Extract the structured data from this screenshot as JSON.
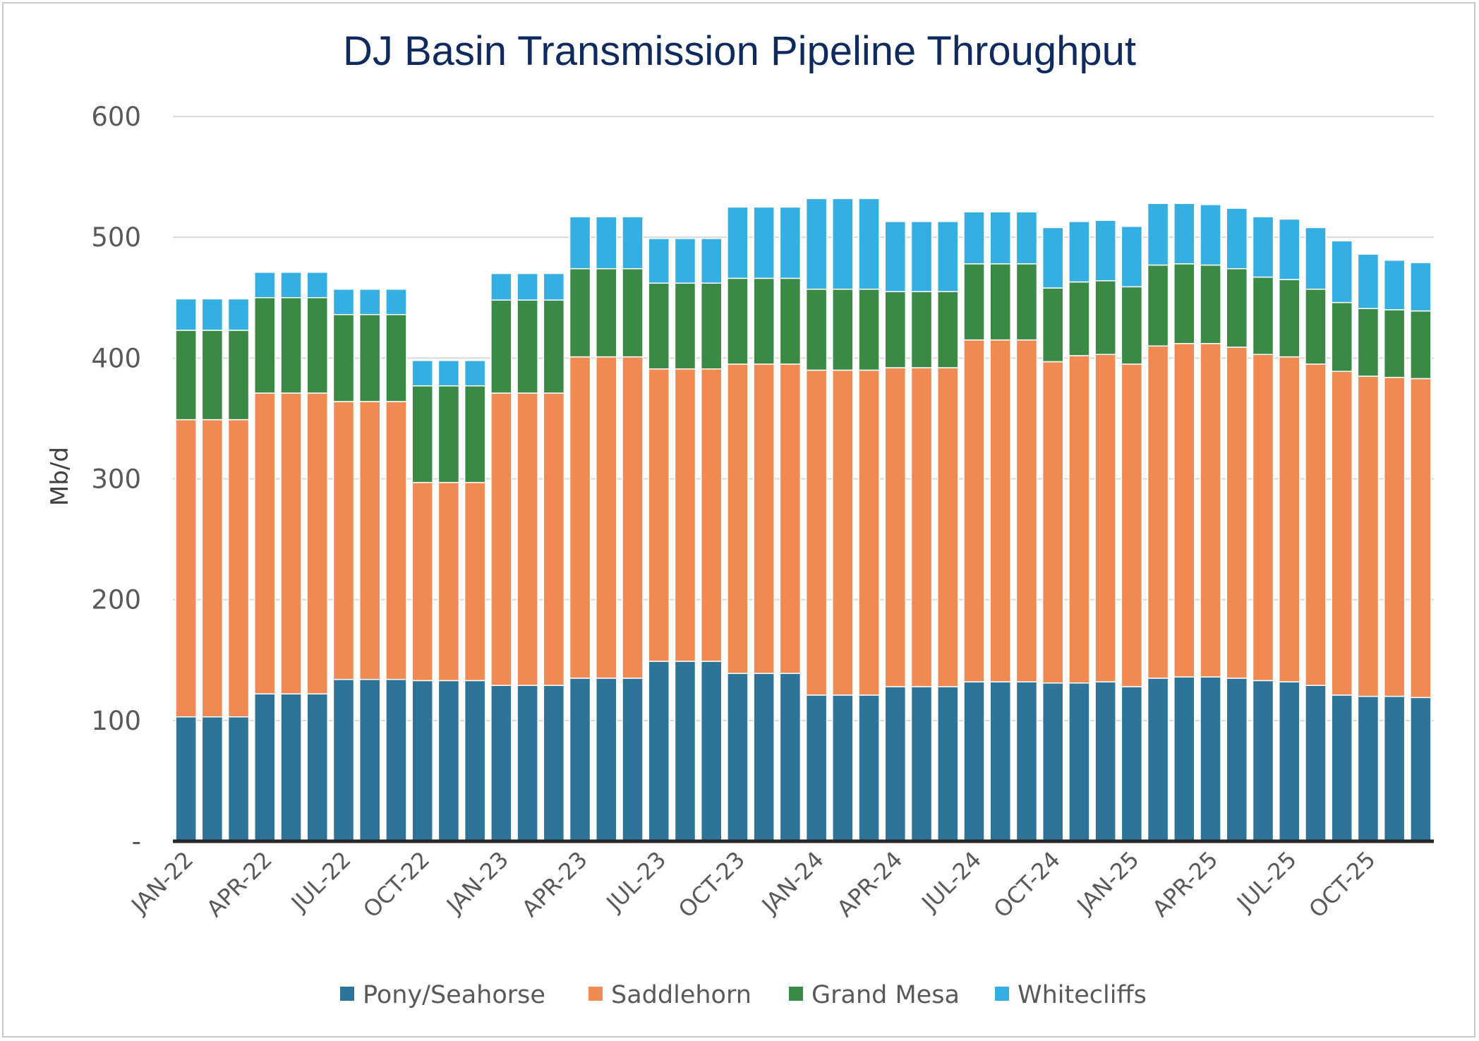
{
  "chart_data": {
    "type": "bar",
    "stacked": true,
    "title": "DJ Basin Transmission Pipeline Throughput",
    "xlabel": "",
    "ylabel": "Mb/d",
    "ylim": [
      0,
      600
    ],
    "yticks": [
      0,
      100,
      200,
      300,
      400,
      500,
      600
    ],
    "ytick_labels": [
      "-",
      "100",
      "200",
      "300",
      "400",
      "500",
      "600"
    ],
    "grid": true,
    "legend_position": "bottom",
    "categories": [
      "JAN-22",
      "FEB-22",
      "MAR-22",
      "APR-22",
      "MAY-22",
      "JUN-22",
      "JUL-22",
      "AUG-22",
      "SEP-22",
      "OCT-22",
      "NOV-22",
      "DEC-22",
      "JAN-23",
      "FEB-23",
      "MAR-23",
      "APR-23",
      "MAY-23",
      "JUN-23",
      "JUL-23",
      "AUG-23",
      "SEP-23",
      "OCT-23",
      "NOV-23",
      "DEC-23",
      "JAN-24",
      "FEB-24",
      "MAR-24",
      "APR-24",
      "MAY-24",
      "JUN-24",
      "JUL-24",
      "AUG-24",
      "SEP-24",
      "OCT-24",
      "NOV-24",
      "DEC-24",
      "JAN-25",
      "FEB-25",
      "MAR-25",
      "APR-25",
      "MAY-25",
      "JUN-25",
      "JUL-25",
      "AUG-25",
      "SEP-25",
      "OCT-25",
      "NOV-25",
      "DEC-25"
    ],
    "x_tick_labels": [
      "JAN-22",
      "",
      "",
      "APR-22",
      "",
      "",
      "JUL-22",
      "",
      "",
      "OCT-22",
      "",
      "",
      "JAN-23",
      "",
      "",
      "APR-23",
      "",
      "",
      "JUL-23",
      "",
      "",
      "OCT-23",
      "",
      "",
      "JAN-24",
      "",
      "",
      "APR-24",
      "",
      "",
      "JUL-24",
      "",
      "",
      "OCT-24",
      "",
      "",
      "JAN-25",
      "",
      "",
      "APR-25",
      "",
      "",
      "JUL-25",
      "",
      "",
      "OCT-25",
      "",
      ""
    ],
    "series": [
      {
        "name": "Pony/Seahorse",
        "color": "#2e7499",
        "values": [
          103,
          103,
          103,
          122,
          122,
          122,
          134,
          134,
          134,
          133,
          133,
          133,
          129,
          129,
          129,
          135,
          135,
          135,
          149,
          149,
          149,
          139,
          139,
          139,
          121,
          121,
          121,
          128,
          128,
          128,
          132,
          132,
          132,
          131,
          131,
          132,
          128,
          135,
          136,
          136,
          135,
          133,
          132,
          129,
          121,
          120,
          120,
          119
        ]
      },
      {
        "name": "Saddlehorn",
        "color": "#f08a52",
        "values": [
          246,
          246,
          246,
          249,
          249,
          249,
          230,
          230,
          230,
          164,
          164,
          164,
          242,
          242,
          242,
          266,
          266,
          266,
          242,
          242,
          242,
          256,
          256,
          256,
          269,
          269,
          269,
          264,
          264,
          264,
          283,
          283,
          283,
          266,
          271,
          271,
          267,
          275,
          276,
          276,
          274,
          270,
          269,
          266,
          268,
          265,
          264,
          264
        ]
      },
      {
        "name": "Grand Mesa",
        "color": "#3a8a45",
        "values": [
          74,
          74,
          74,
          79,
          79,
          79,
          72,
          72,
          72,
          80,
          80,
          80,
          77,
          77,
          77,
          73,
          73,
          73,
          71,
          71,
          71,
          71,
          71,
          71,
          67,
          67,
          67,
          63,
          63,
          63,
          63,
          63,
          63,
          61,
          61,
          61,
          64,
          67,
          66,
          65,
          65,
          64,
          64,
          62,
          57,
          56,
          56,
          56
        ]
      },
      {
        "name": "Whitecliffs",
        "color": "#35aee2",
        "values": [
          26,
          26,
          26,
          21,
          21,
          21,
          21,
          21,
          21,
          21,
          21,
          21,
          22,
          22,
          22,
          43,
          43,
          43,
          37,
          37,
          37,
          59,
          59,
          59,
          75,
          75,
          75,
          58,
          58,
          58,
          43,
          43,
          43,
          50,
          50,
          50,
          50,
          51,
          50,
          50,
          50,
          50,
          50,
          51,
          51,
          45,
          41,
          40
        ]
      }
    ]
  }
}
